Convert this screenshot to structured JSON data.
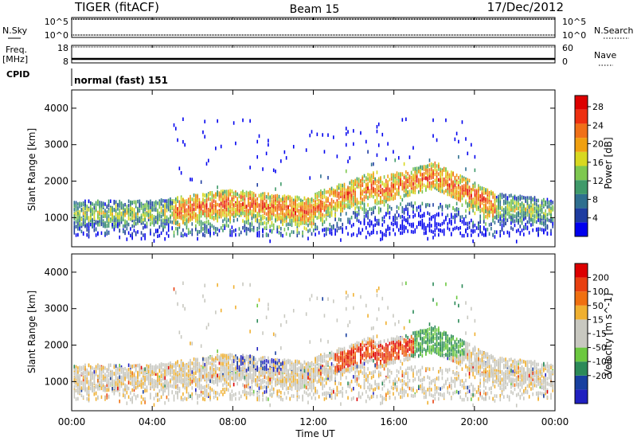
{
  "header": {
    "title": "TIGER (fitACF)",
    "beam": "Beam 15",
    "date": "17/Dec/2012"
  },
  "panel_labels": {
    "nsky": "N.Sky",
    "freq": "Freq.",
    "freq_unit": "[MHz]",
    "cpid": "CPID",
    "nsearch": "N.Search",
    "nave": "Nave"
  },
  "cpid_text": "normal (fast) 151",
  "power_colors": [
    "#0000ee",
    "#1e3ca0",
    "#2f6f8f",
    "#3f9a6a",
    "#7ec850",
    "#d8d820",
    "#f0a010",
    "#f07018",
    "#ee3010",
    "#dd0000"
  ],
  "velocity_colors": [
    "#2020c0",
    "#1840a0",
    "#2c8a58",
    "#6cc840",
    "#c8c8c0",
    "#c8c8c0",
    "#f0b030",
    "#f07010",
    "#e84010",
    "#dd0000"
  ],
  "chart_data": [
    {
      "type": "line",
      "title": "N.Sky / N.Search",
      "yticks_left": [
        "10^5",
        "10^0"
      ],
      "yticks_right": [
        "10^5",
        "10^0"
      ]
    },
    {
      "type": "line",
      "title": "Freq. / Nave",
      "yticks_left": [
        "18",
        "8"
      ],
      "yticks_right": [
        "60",
        "0"
      ]
    },
    {
      "type": "heatmap",
      "ylabel": "Slant Range [km]",
      "colorbar_label": "Power [dB]",
      "colorbar_ticks": [
        "4",
        "8",
        "12",
        "16",
        "20",
        "24",
        "28"
      ],
      "xlim": [
        0,
        24
      ],
      "ylim": [
        200,
        4500
      ],
      "yticks": [
        "1000",
        "2000",
        "3000",
        "4000"
      ]
    },
    {
      "type": "heatmap",
      "ylabel": "Slant Range [km]",
      "colorbar_label": "Velocity [m s^-1]",
      "colorbar_ticks": [
        "-200",
        "-100",
        "-50",
        "-15",
        "15",
        "50",
        "100",
        "200"
      ],
      "xlim": [
        0,
        24
      ],
      "ylim": [
        200,
        4500
      ],
      "yticks": [
        "1000",
        "2000",
        "3000",
        "4000"
      ],
      "xlabel": "Time UT",
      "xticks": [
        "00:00",
        "04:00",
        "08:00",
        "12:00",
        "16:00",
        "20:00",
        "00:00"
      ]
    }
  ]
}
